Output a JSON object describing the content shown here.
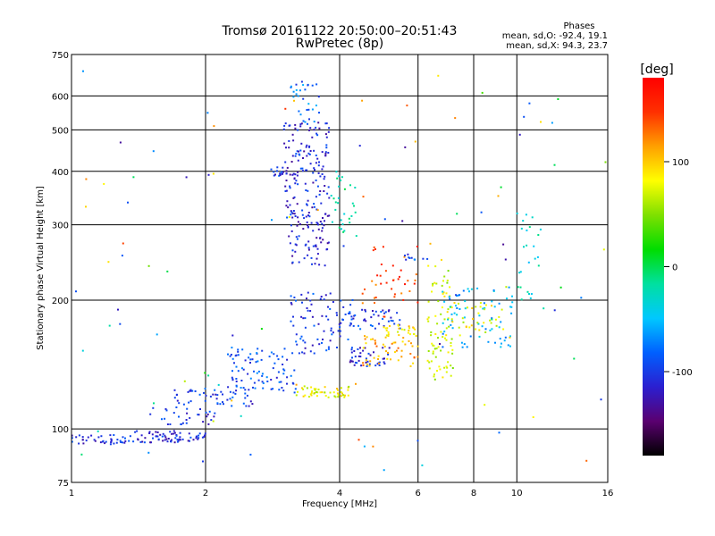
{
  "chart_data": {
    "type": "scatter",
    "title": "Tromsø 20161122 20:50:00–20:51:43",
    "subtitle": "RwPretec (8p)",
    "xlabel": "Frequency [MHz]",
    "ylabel": "Stationary phase Virtual Height [km]",
    "x_scale": "log",
    "y_scale": "log",
    "xlim": [
      1,
      16
    ],
    "ylim": [
      75,
      750
    ],
    "x_ticks": [
      1,
      2,
      4,
      6,
      8,
      10,
      16
    ],
    "x_tick_labels": [
      "1",
      "2",
      "4",
      "6",
      "8",
      "10",
      "16"
    ],
    "y_ticks": [
      75,
      100,
      200,
      300,
      400,
      500,
      600,
      750
    ],
    "y_tick_labels": [
      "75",
      "100",
      "200",
      "300",
      "400",
      "500",
      "600",
      "750"
    ],
    "grid": true,
    "stats": {
      "heading": "Phases",
      "line_o": "mean, sd,O: -92.4, 19.1",
      "line_x": "mean, sd,X:  94.3, 23.7"
    },
    "colorbar": {
      "label": "[deg]",
      "range": [
        -180,
        180
      ],
      "ticks": [
        100,
        0,
        -100
      ],
      "tick_labels": [
        "100",
        "0",
        "-100"
      ],
      "colors": [
        "#000000",
        "#5a0070",
        "#2b1fd0",
        "#0060ff",
        "#00c8ff",
        "#00e0a0",
        "#00dd00",
        "#7ee000",
        "#ffff00",
        "#ffa000",
        "#ff3000",
        "#ff0000"
      ]
    },
    "clusters": [
      {
        "f": [
          1.0,
          1.35
        ],
        "h": [
          92,
          97
        ],
        "phase": -105,
        "n": 40
      },
      {
        "f": [
          1.35,
          2.0
        ],
        "h": [
          93,
          99
        ],
        "phase": -110,
        "n": 70
      },
      {
        "f": [
          1.5,
          2.1
        ],
        "h": [
          102,
          112
        ],
        "phase": -105,
        "n": 30
      },
      {
        "f": [
          1.7,
          2.6
        ],
        "h": [
          112,
          125
        ],
        "phase": -100,
        "n": 50
      },
      {
        "f": [
          2.2,
          3.2
        ],
        "h": [
          120,
          155
        ],
        "phase": -90,
        "n": 90
      },
      {
        "f": [
          2.8,
          3.0
        ],
        "h": [
          390,
          410
        ],
        "phase": -100,
        "n": 15
      },
      {
        "f": [
          3.0,
          3.8
        ],
        "h": [
          240,
          520
        ],
        "phase": -110,
        "n": 220
      },
      {
        "f": [
          3.1,
          3.6
        ],
        "h": [
          520,
          650
        ],
        "phase": -80,
        "n": 30
      },
      {
        "f": [
          3.1,
          4.3
        ],
        "h": [
          150,
          210
        ],
        "phase": -100,
        "n": 80
      },
      {
        "f": [
          3.2,
          4.2
        ],
        "h": [
          118,
          126
        ],
        "phase": 80,
        "n": 50
      },
      {
        "f": [
          3.8,
          4.4
        ],
        "h": [
          280,
          400
        ],
        "phase": -20,
        "n": 30
      },
      {
        "f": [
          4.0,
          5.5
        ],
        "h": [
          170,
          190
        ],
        "phase": -100,
        "n": 50
      },
      {
        "f": [
          4.2,
          5.2
        ],
        "h": [
          140,
          155
        ],
        "phase": -110,
        "n": 40
      },
      {
        "f": [
          4.5,
          6.0
        ],
        "h": [
          140,
          165
        ],
        "phase": 110,
        "n": 50
      },
      {
        "f": [
          4.5,
          6.0
        ],
        "h": [
          180,
          270
        ],
        "phase": 140,
        "n": 40
      },
      {
        "f": [
          5.0,
          6.0
        ],
        "h": [
          165,
          175
        ],
        "phase": 90,
        "n": 25
      },
      {
        "f": [
          5.6,
          6.3
        ],
        "h": [
          248,
          256
        ],
        "phase": -90,
        "n": 10
      },
      {
        "f": [
          6.3,
          7.2
        ],
        "h": [
          130,
          250
        ],
        "phase": 70,
        "n": 80
      },
      {
        "f": [
          6.8,
          10.0
        ],
        "h": [
          155,
          215
        ],
        "phase": -60,
        "n": 70
      },
      {
        "f": [
          7.0,
          9.5
        ],
        "h": [
          165,
          200
        ],
        "phase": 80,
        "n": 35
      },
      {
        "f": [
          9.8,
          11.5
        ],
        "h": [
          190,
          320
        ],
        "phase": -30,
        "n": 25
      },
      {
        "f": [
          1.0,
          16.0
        ],
        "h": [
          80,
          700
        ],
        "phase": 0,
        "n": 100
      }
    ]
  }
}
